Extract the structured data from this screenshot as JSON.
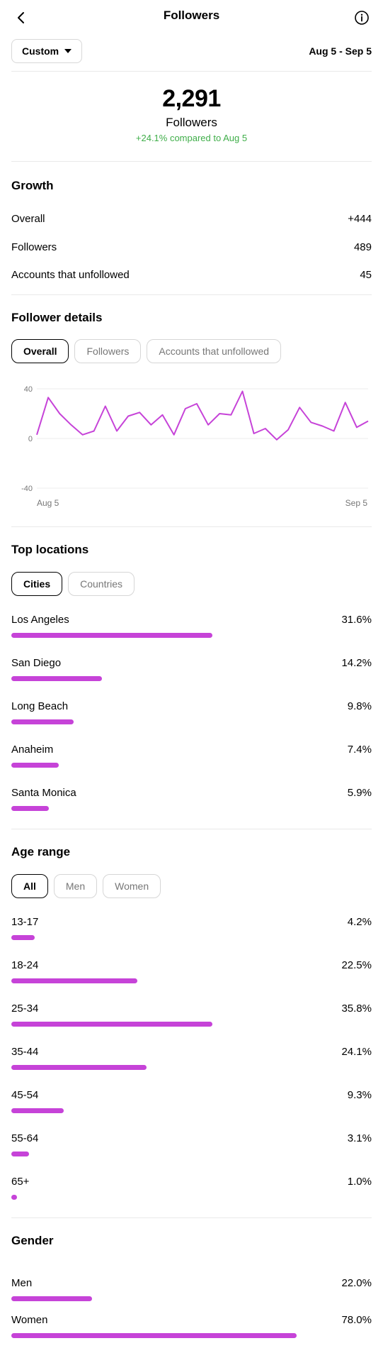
{
  "header": {
    "title": "Followers"
  },
  "filter": {
    "period_label": "Custom",
    "date_range": "Aug 5 - Sep 5"
  },
  "summary": {
    "total": "2,291",
    "label": "Followers",
    "change": "+24.1% compared to Aug 5"
  },
  "growth": {
    "title": "Growth",
    "rows": [
      {
        "label": "Overall",
        "value": "+444"
      },
      {
        "label": "Followers",
        "value": "489"
      },
      {
        "label": "Accounts that unfollowed",
        "value": "45"
      }
    ]
  },
  "follower_details": {
    "title": "Follower details",
    "tabs": [
      "Overall",
      "Followers",
      "Accounts that unfollowed"
    ],
    "active_tab": "Overall"
  },
  "chart_data": {
    "type": "line",
    "xlabel": "",
    "ylabel": "",
    "x_start_label": "Aug 5",
    "x_end_label": "Sep 5",
    "yticks": [
      "40",
      "0",
      "-40"
    ],
    "ylim": [
      -40,
      40
    ],
    "series": [
      {
        "color": "#c643d8",
        "values": [
          3,
          33,
          20,
          11,
          3,
          6,
          26,
          6,
          18,
          21,
          11,
          19,
          3,
          24,
          28,
          11,
          20,
          19,
          38,
          4,
          8,
          -1,
          7,
          25,
          13,
          10,
          6,
          29,
          9,
          14
        ]
      }
    ],
    "grid": true
  },
  "top_locations": {
    "title": "Top locations",
    "tabs": [
      "Cities",
      "Countries"
    ],
    "active_tab": "Cities",
    "items": [
      {
        "label": "Los Angeles",
        "value": "31.6%",
        "pct": 31.6
      },
      {
        "label": "San Diego",
        "value": "14.2%",
        "pct": 14.2
      },
      {
        "label": "Long Beach",
        "value": "9.8%",
        "pct": 9.8
      },
      {
        "label": "Anaheim",
        "value": "7.4%",
        "pct": 7.4
      },
      {
        "label": "Santa Monica",
        "value": "5.9%",
        "pct": 5.9
      }
    ]
  },
  "age_range": {
    "title": "Age range",
    "tabs": [
      "All",
      "Men",
      "Women"
    ],
    "active_tab": "All",
    "items": [
      {
        "label": "13-17",
        "value": "4.2%",
        "pct": 4.2
      },
      {
        "label": "18-24",
        "value": "22.5%",
        "pct": 22.5
      },
      {
        "label": "25-34",
        "value": "35.8%",
        "pct": 35.8
      },
      {
        "label": "35-44",
        "value": "24.1%",
        "pct": 24.1
      },
      {
        "label": "45-54",
        "value": "9.3%",
        "pct": 9.3
      },
      {
        "label": "55-64",
        "value": "3.1%",
        "pct": 3.1
      },
      {
        "label": "65+",
        "value": "1.0%",
        "pct": 1.0
      }
    ]
  },
  "gender": {
    "title": "Gender",
    "items": [
      {
        "label": "Men",
        "value": "22.0%",
        "pct": 22.0
      },
      {
        "label": "Women",
        "value": "78.0%",
        "pct": 78.0
      }
    ]
  },
  "colors": {
    "accent": "#c643d8",
    "positive": "#3fae49"
  },
  "icons": {
    "back": "chevron-left-icon",
    "info": "info-icon",
    "dropdown": "caret-down-icon"
  }
}
